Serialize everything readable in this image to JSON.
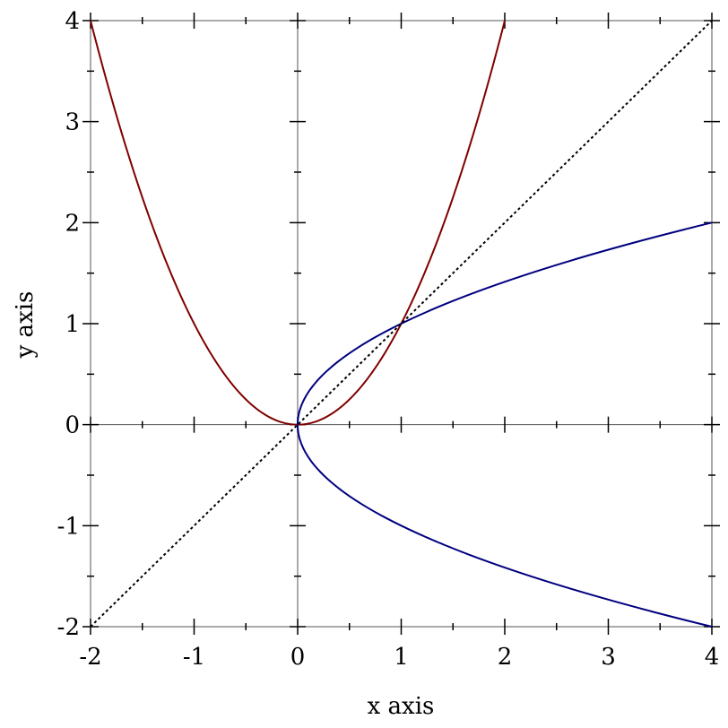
{
  "chart_data": {
    "type": "line",
    "title": "",
    "xlabel": "x axis",
    "ylabel": "y axis",
    "xlim": [
      -2,
      4
    ],
    "ylim": [
      -2,
      4
    ],
    "xticks": [
      "-2",
      "-1",
      "0",
      "1",
      "2",
      "3",
      "4"
    ],
    "yticks": [
      "-2",
      "-1",
      "0",
      "1",
      "2",
      "3",
      "4"
    ],
    "grid": false,
    "series": [
      {
        "color": "#800000",
        "style": "solid",
        "x": [
          -2,
          -1.75,
          -1.5,
          -1.25,
          -1,
          -0.75,
          -0.5,
          -0.25,
          0,
          0.25,
          0.5,
          0.75,
          1,
          1.25,
          1.5,
          1.75,
          2
        ],
        "y": [
          4,
          3.0625,
          2.25,
          1.5625,
          1,
          0.5625,
          0.25,
          0.0625,
          0,
          0.0625,
          0.25,
          0.5625,
          1,
          1.5625,
          2.25,
          3.0625,
          4
        ]
      },
      {
        "color": "#000080",
        "style": "solid",
        "x": [
          4,
          3.0625,
          2.25,
          1.5625,
          1,
          0.5625,
          0.25,
          0.0625,
          0,
          0.0625,
          0.25,
          0.5625,
          1,
          1.5625,
          2.25,
          3.0625,
          4
        ],
        "y": [
          -2,
          -1.75,
          -1.5,
          -1.25,
          -1,
          -0.75,
          -0.5,
          -0.25,
          0,
          0.25,
          0.5,
          0.75,
          1,
          1.25,
          1.5,
          1.75,
          2
        ]
      },
      {
        "color": "#000000",
        "style": "dotted",
        "x": [
          -2,
          4
        ],
        "y": [
          -2,
          4
        ]
      }
    ]
  }
}
